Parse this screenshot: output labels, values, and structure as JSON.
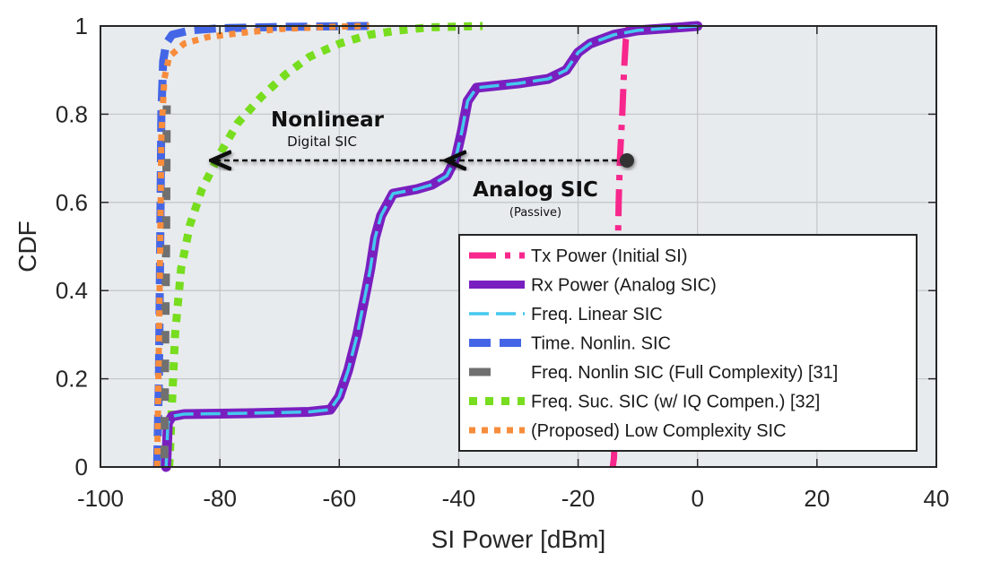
{
  "chart_data": {
    "type": "line",
    "xlabel": "SI Power [dBm]",
    "ylabel": "CDF",
    "xlim": [
      -100,
      40
    ],
    "ylim": [
      0,
      1
    ],
    "xticks": [
      -100,
      -80,
      -60,
      -40,
      -20,
      0,
      20,
      40
    ],
    "yticks": [
      0,
      0.2,
      0.4,
      0.6,
      0.8,
      1
    ],
    "xtick_labels": [
      "-100",
      "-80",
      "-60",
      "-40",
      "-20",
      "0",
      "20",
      "40"
    ],
    "ytick_labels": [
      "0",
      "0.2",
      "0.4",
      "0.6",
      "0.8",
      "1"
    ],
    "grid": true,
    "legend_position": "bottom-right",
    "series": [
      {
        "name": "Tx Power (Initial SI)",
        "color": "#f7278c",
        "style": "dashdot",
        "points": [
          [
            -14.2,
            0
          ],
          [
            -14,
            0.02
          ],
          [
            -13.8,
            0.1
          ],
          [
            -13.6,
            0.25
          ],
          [
            -13.4,
            0.45
          ],
          [
            -13.2,
            0.6
          ],
          [
            -13,
            0.7
          ],
          [
            -12.6,
            0.8
          ],
          [
            -12.3,
            0.9
          ],
          [
            -12.0,
            0.97
          ],
          [
            -11.5,
            1.0
          ]
        ]
      },
      {
        "name": "Rx Power (Analog SIC)",
        "color": "#7a1fbf",
        "style": "solid",
        "points": [
          [
            -89,
            0
          ],
          [
            -88.7,
            0.1
          ],
          [
            -88,
            0.115
          ],
          [
            -86,
            0.12
          ],
          [
            -75,
            0.122
          ],
          [
            -65,
            0.125
          ],
          [
            -61.5,
            0.13
          ],
          [
            -60,
            0.16
          ],
          [
            -58.5,
            0.22
          ],
          [
            -57,
            0.3
          ],
          [
            -55.5,
            0.4
          ],
          [
            -54.8,
            0.45
          ],
          [
            -54,
            0.52
          ],
          [
            -53,
            0.57
          ],
          [
            -51,
            0.62
          ],
          [
            -47,
            0.63
          ],
          [
            -44.5,
            0.64
          ],
          [
            -42,
            0.66
          ],
          [
            -40.5,
            0.7
          ],
          [
            -39.5,
            0.76
          ],
          [
            -38.5,
            0.83
          ],
          [
            -37,
            0.86
          ],
          [
            -30,
            0.87
          ],
          [
            -25,
            0.88
          ],
          [
            -22,
            0.9
          ],
          [
            -20,
            0.94
          ],
          [
            -18,
            0.96
          ],
          [
            -14,
            0.98
          ],
          [
            -10,
            0.99
          ],
          [
            -5,
            0.995
          ],
          [
            0,
            1.0
          ]
        ]
      },
      {
        "name": "Freq. Linear SIC",
        "color": "#44c8ee",
        "style": "dashed",
        "points": [
          [
            -89,
            0
          ],
          [
            -88.7,
            0.1
          ],
          [
            -88,
            0.115
          ],
          [
            -86,
            0.12
          ],
          [
            -75,
            0.122
          ],
          [
            -65,
            0.125
          ],
          [
            -61.5,
            0.13
          ],
          [
            -60,
            0.16
          ],
          [
            -58.5,
            0.22
          ],
          [
            -57,
            0.3
          ],
          [
            -55.5,
            0.4
          ],
          [
            -54.8,
            0.45
          ],
          [
            -54,
            0.52
          ],
          [
            -53,
            0.57
          ],
          [
            -51,
            0.62
          ],
          [
            -47,
            0.63
          ],
          [
            -44.5,
            0.64
          ],
          [
            -42,
            0.66
          ],
          [
            -40.5,
            0.7
          ],
          [
            -39.5,
            0.76
          ],
          [
            -38.5,
            0.83
          ],
          [
            -37,
            0.86
          ],
          [
            -30,
            0.87
          ],
          [
            -25,
            0.88
          ],
          [
            -22,
            0.9
          ],
          [
            -20,
            0.94
          ],
          [
            -18,
            0.96
          ],
          [
            -14,
            0.98
          ],
          [
            -10,
            0.99
          ],
          [
            -5,
            0.995
          ],
          [
            0,
            1.0
          ]
        ]
      },
      {
        "name": "Time. Nonlin. SIC",
        "color": "#4466e6",
        "style": "dashed",
        "points": [
          [
            -90.5,
            0
          ],
          [
            -90.2,
            0.2
          ],
          [
            -90,
            0.5
          ],
          [
            -89.8,
            0.8
          ],
          [
            -89.5,
            0.92
          ],
          [
            -89,
            0.96
          ],
          [
            -88,
            0.98
          ],
          [
            -85,
            0.99
          ],
          [
            -80,
            0.995
          ],
          [
            -70,
            0.998
          ],
          [
            -55,
            1.0
          ]
        ]
      },
      {
        "name": "Freq. Nonlin SIC (Full Complexity) [31]",
        "color": "#707070",
        "style": "dashed-sparse",
        "points": [
          [
            -89.3,
            0.02
          ],
          [
            -89.2,
            0.2
          ],
          [
            -89.0,
            0.5
          ],
          [
            -88.9,
            0.82
          ]
        ]
      },
      {
        "name": "Freq. Suc. SIC (w/ IQ Compen.) [32]",
        "color": "#77dd1e",
        "style": "dotted",
        "points": [
          [
            -88.5,
            0
          ],
          [
            -88.3,
            0.05
          ],
          [
            -88,
            0.15
          ],
          [
            -87.5,
            0.3
          ],
          [
            -86.5,
            0.45
          ],
          [
            -85,
            0.55
          ],
          [
            -83,
            0.63
          ],
          [
            -80,
            0.71
          ],
          [
            -77,
            0.78
          ],
          [
            -73,
            0.84
          ],
          [
            -69,
            0.89
          ],
          [
            -65,
            0.93
          ],
          [
            -60,
            0.96
          ],
          [
            -55,
            0.98
          ],
          [
            -50,
            0.99
          ],
          [
            -45,
            0.997
          ],
          [
            -36,
            1.0
          ]
        ]
      },
      {
        "name": "(Proposed) Low Complexity SIC",
        "color": "#f78c3c",
        "style": "dotted",
        "points": [
          [
            -90.5,
            0
          ],
          [
            -90.3,
            0.2
          ],
          [
            -90,
            0.5
          ],
          [
            -89.8,
            0.75
          ],
          [
            -89.3,
            0.88
          ],
          [
            -88.5,
            0.93
          ],
          [
            -86,
            0.96
          ],
          [
            -82,
            0.975
          ],
          [
            -76,
            0.985
          ],
          [
            -70,
            0.993
          ],
          [
            -62,
            0.998
          ],
          [
            -55,
            1.0
          ]
        ]
      }
    ],
    "annotations": [
      {
        "title": "Nonlinear",
        "subtitle": "Digital SIC"
      },
      {
        "title": "Analog SIC",
        "subtitle": "(Passive)"
      }
    ]
  }
}
